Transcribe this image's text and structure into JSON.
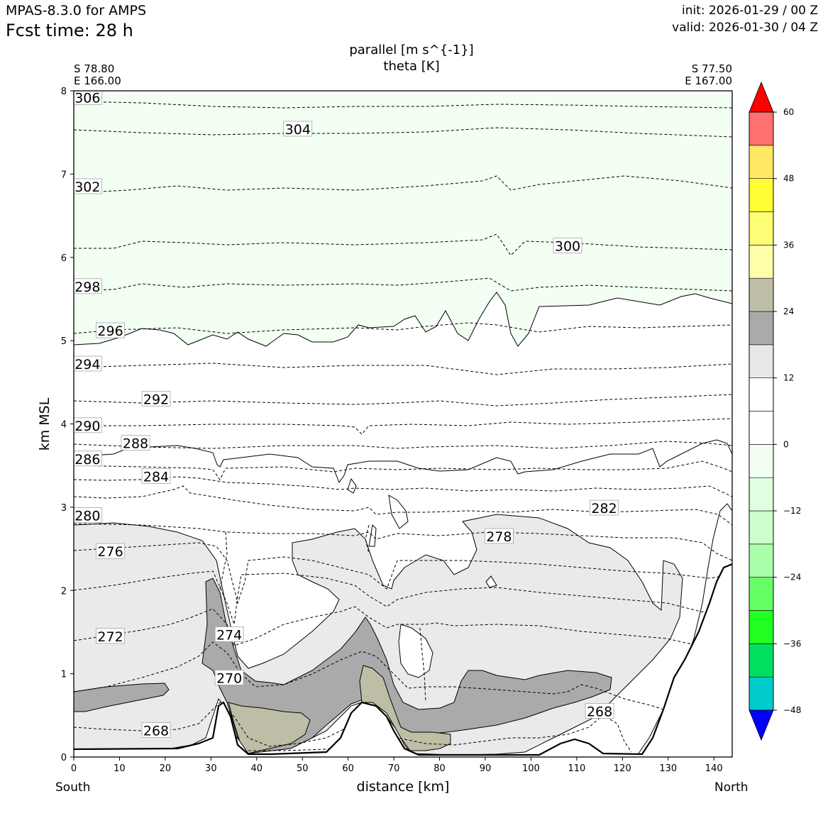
{
  "header": {
    "model": "MPAS-8.3.0 for AMPS",
    "fcst_time": "Fcst time:   28 h",
    "init": "init: 2026-01-29 / 00 Z",
    "valid": "valid: 2026-01-30 / 04 Z"
  },
  "chart_data": {
    "type": "cross-section",
    "title_line1": "parallel [m s^{-1}]",
    "title_line2": "theta [K]",
    "start_point": {
      "lat": "S 78.80",
      "lon": "E 166.00"
    },
    "end_point": {
      "lat": "S 77.50",
      "lon": "E 167.00"
    },
    "xlabel": "distance [km]",
    "ylabel": "km MSL",
    "left_end_label": "South",
    "right_end_label": "North",
    "xlim": [
      0,
      144
    ],
    "ylim": [
      0,
      8
    ],
    "x_ticks": [
      0,
      10,
      20,
      30,
      40,
      50,
      60,
      70,
      80,
      90,
      100,
      110,
      120,
      130,
      140
    ],
    "y_ticks": [
      0,
      1,
      2,
      3,
      4,
      5,
      6,
      7,
      8
    ],
    "theta_contour_labels": [
      {
        "text": "306",
        "x": 3,
        "y": 7.92
      },
      {
        "text": "304",
        "x": 49,
        "y": 7.54
      },
      {
        "text": "302",
        "x": 3,
        "y": 6.85
      },
      {
        "text": "300",
        "x": 108,
        "y": 6.14
      },
      {
        "text": "298",
        "x": 3,
        "y": 5.65
      },
      {
        "text": "296",
        "x": 8,
        "y": 5.12
      },
      {
        "text": "294",
        "x": 3,
        "y": 4.72
      },
      {
        "text": "292",
        "x": 18,
        "y": 4.3
      },
      {
        "text": "290",
        "x": 3,
        "y": 3.98
      },
      {
        "text": "288",
        "x": 13.5,
        "y": 3.77
      },
      {
        "text": "286",
        "x": 3,
        "y": 3.58
      },
      {
        "text": "284",
        "x": 18,
        "y": 3.37
      },
      {
        "text": "282",
        "x": 116,
        "y": 2.99
      },
      {
        "text": "280",
        "x": 3,
        "y": 2.9
      },
      {
        "text": "278",
        "x": 93,
        "y": 2.65
      },
      {
        "text": "276",
        "x": 8,
        "y": 2.47
      },
      {
        "text": "274",
        "x": 34,
        "y": 1.47
      },
      {
        "text": "272",
        "x": 8,
        "y": 1.45
      },
      {
        "text": "270",
        "x": 34,
        "y": 0.95
      },
      {
        "text": "268",
        "x": 115,
        "y": 0.55
      },
      {
        "text": "268",
        "x": 18,
        "y": 0.32
      }
    ],
    "colorbar": {
      "ticks": [
        60,
        48,
        36,
        24,
        12,
        0,
        -12,
        -24,
        -36,
        -48
      ],
      "tick_labels": [
        "60",
        "48",
        "36",
        "24",
        "12",
        "0",
        "−12",
        "−24",
        "−36",
        "−48"
      ],
      "colors": [
        "#0000ff",
        "#00cccc",
        "#00e060",
        "#22ff22",
        "#66ff66",
        "#aaffaa",
        "#ccffcc",
        "#e0ffe0",
        "#f2fff2",
        "#ffffff",
        "#ffffff",
        "#e8e8e8",
        "#aaaaaa",
        "#bebea6",
        "#ffffaa",
        "#ffff77",
        "#ffff33",
        "#ffe866",
        "#ff7070",
        "#ff0000"
      ],
      "bounds": [
        -54,
        -48,
        -42,
        -36,
        -30,
        -24,
        -18,
        -12,
        -6,
        0,
        6,
        12,
        18,
        24,
        30,
        36,
        42,
        48,
        54,
        60
      ]
    }
  }
}
